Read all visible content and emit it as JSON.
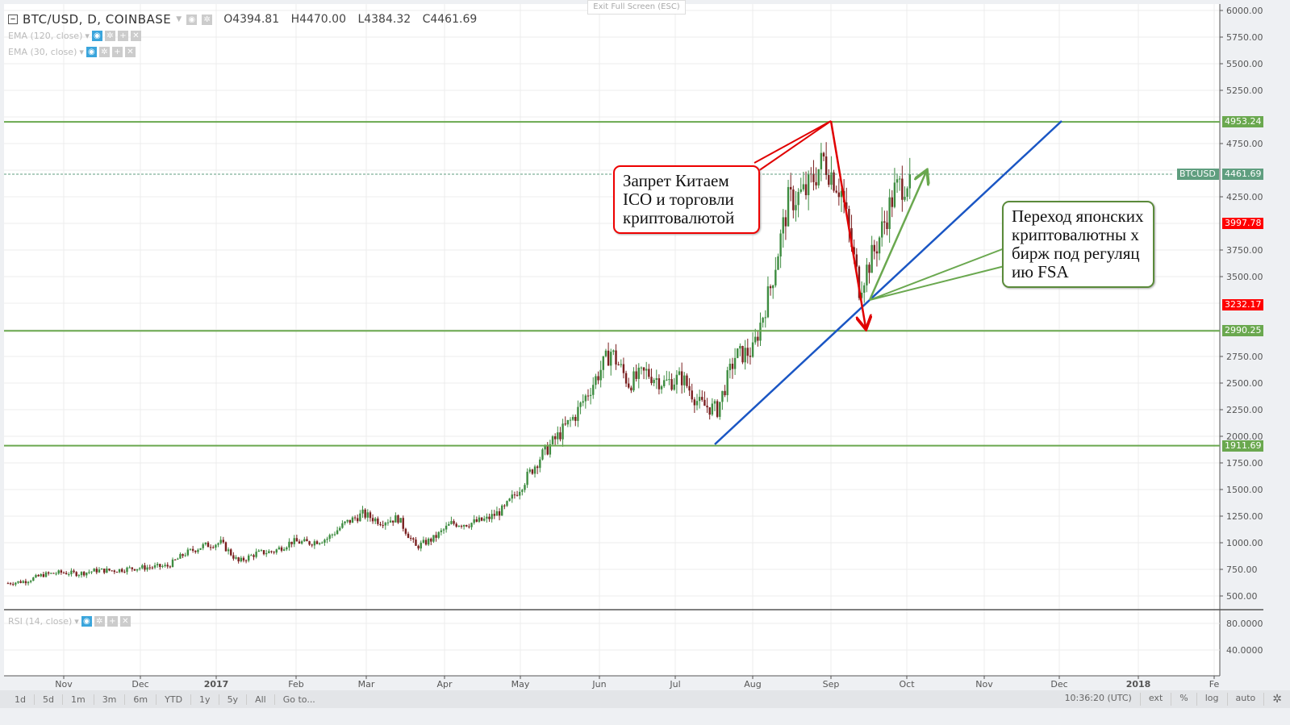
{
  "header": {
    "symbol": "BTC/USD, D, COINBASE",
    "open": "O4394.81",
    "high": "H4470.00",
    "low": "L4384.32",
    "close": "C4461.69"
  },
  "indicators": [
    {
      "label": "EMA (120, close)"
    },
    {
      "label": "EMA (30, close)"
    }
  ],
  "rsi": {
    "label": "RSI (14, close)",
    "ticks": [
      "80.0000",
      "40.0000"
    ]
  },
  "exit_fullscreen": "Exit Full Screen (ESC)",
  "price_axis": {
    "ticks": [
      "6000.00",
      "5750.00",
      "5500.00",
      "5250.00",
      "4750.00",
      "4250.00",
      "3750.00",
      "3500.00",
      "2750.00",
      "2500.00",
      "2250.00",
      "2000.00",
      "1750.00",
      "1500.00",
      "1250.00",
      "1000.00",
      "750.00",
      "500.00"
    ]
  },
  "price_labels": [
    {
      "text": "4953.24",
      "color": "#6aa84f"
    },
    {
      "text": "4461.69",
      "color": "#5f9e7f",
      "tag": "BTCUSD"
    },
    {
      "text": "3997.78",
      "color": "#ff0000"
    },
    {
      "text": "3232.17",
      "color": "#ff0000"
    },
    {
      "text": "2990.25",
      "color": "#6aa84f"
    },
    {
      "text": "1911.69",
      "color": "#6aa84f"
    }
  ],
  "time_axis": [
    "Nov",
    "Dec",
    "2017",
    "Feb",
    "Mar",
    "Apr",
    "May",
    "Jun",
    "Jul",
    "Aug",
    "Sep",
    "Oct",
    "Nov",
    "Dec",
    "2018",
    "Fe"
  ],
  "notes": {
    "china": "Запрет Китаем ICO и торговли криптовалютой",
    "japan": "Переход японских криптовалютны х бирж под регуляцию FSA"
  },
  "bottom_bar": {
    "ranges": [
      "1d",
      "5d",
      "1m",
      "3m",
      "6m",
      "YTD",
      "1y",
      "5y",
      "All",
      "Go to..."
    ],
    "time": "10:36:20 (UTC)",
    "options": [
      "ext",
      "%",
      "log",
      "auto"
    ]
  },
  "chart_data": {
    "type": "candlestick",
    "ylim": [
      500,
      6000
    ],
    "weekly_close_approx": {
      "start": "2016-10-10",
      "values": [
        620,
        640,
        700,
        720,
        710,
        740,
        740,
        760,
        770,
        780,
        900,
        970,
        1000,
        820,
        900,
        920,
        1010,
        1000,
        1040,
        1180,
        1270,
        1200,
        1230,
        960,
        1040,
        1180,
        1180,
        1220,
        1320,
        1550,
        1800,
        2000,
        2200,
        2500,
        2800,
        2500,
        2600,
        2500,
        2550,
        2300,
        2250,
        2750,
        2800,
        3400,
        4200,
        4300,
        4600,
        4300,
        3400,
        3800,
        4300,
        4461.69
      ]
    },
    "horizontal_levels": [
      4953.24,
      2990.25,
      1911.69
    ],
    "last_price": 4461.69,
    "colors": {
      "up": "#3d8c40",
      "down": "#7a1f1f",
      "level": "#6aa84f",
      "trend": "#1a56c4",
      "arrow_red": "#e00000",
      "arrow_green": "#6aa84f"
    }
  }
}
